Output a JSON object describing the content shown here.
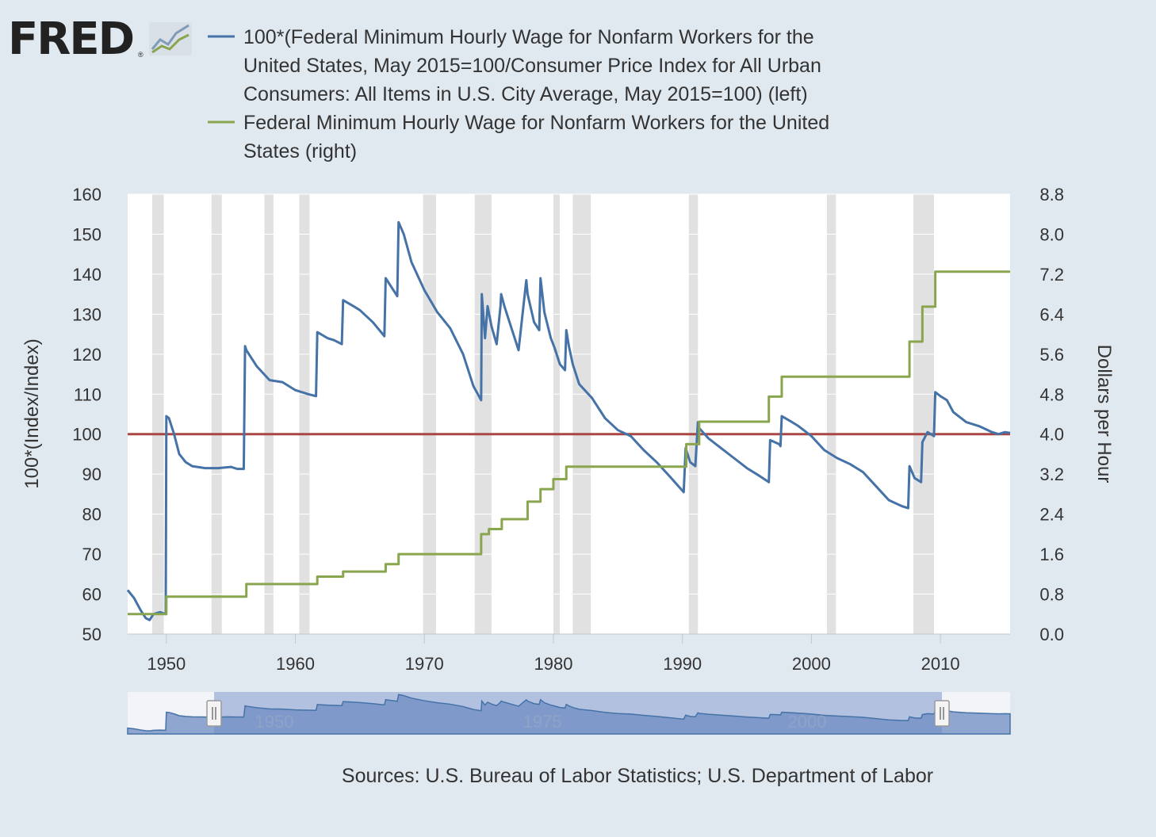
{
  "logo": {
    "text": "FRED",
    "registered": "®"
  },
  "legend": [
    {
      "name": "series-real-minimum-wage",
      "color": "#4572a7",
      "lines": [
        "100*(Federal Minimum Hourly Wage for Nonfarm Workers for the",
        "United States, May 2015=100/Consumer Price Index for All Urban",
        "Consumers: All Items in U.S. City Average, May 2015=100) (left)"
      ]
    },
    {
      "name": "series-nominal-minimum-wage",
      "color": "#89a54e",
      "lines": [
        "Federal Minimum Hourly Wage for Nonfarm Workers for the United",
        "States (right)"
      ]
    }
  ],
  "source_text": "Sources: U.S. Bureau of Labor Statistics; U.S. Department of Labor",
  "navigator": {
    "labels": [
      "1950",
      "1975",
      "2000"
    ]
  },
  "chart_data": {
    "type": "line",
    "title": "",
    "xlabel": "",
    "ylabel_left": "100*(Index/Index)",
    "ylabel_right": "Dollars per Hour",
    "xlim": [
      1947.0,
      2015.4
    ],
    "ylim_left": [
      50,
      160
    ],
    "ylim_right": [
      0,
      8.8
    ],
    "x_ticks": [
      "1950",
      "1960",
      "1970",
      "1980",
      "1990",
      "2000",
      "2010"
    ],
    "y_ticks_left": [
      "50",
      "60",
      "70",
      "80",
      "90",
      "100",
      "110",
      "120",
      "130",
      "140",
      "150",
      "160"
    ],
    "y_ticks_right": [
      "0.0",
      "0.8",
      "1.6",
      "2.4",
      "3.2",
      "4.0",
      "4.8",
      "5.6",
      "6.4",
      "7.2",
      "8.0",
      "8.8"
    ],
    "reference_line": {
      "value": 100,
      "axis": "left",
      "color": "#aa4643"
    },
    "recessions": [
      [
        1948.9,
        1949.8
      ],
      [
        1953.5,
        1954.3
      ],
      [
        1957.6,
        1958.3
      ],
      [
        1960.3,
        1961.1
      ],
      [
        1969.9,
        1970.9
      ],
      [
        1973.9,
        1975.2
      ],
      [
        1980.0,
        1980.5
      ],
      [
        1981.5,
        1982.9
      ],
      [
        1990.5,
        1991.2
      ],
      [
        2001.2,
        2001.9
      ],
      [
        2007.9,
        2009.5
      ]
    ],
    "series": [
      {
        "name": "100*(Federal Minimum Hourly Wage / CPI, May 2015=100) (left)",
        "axis": "left",
        "color": "#4572a7",
        "x": [
          1947.0,
          1947.5,
          1948.0,
          1948.4,
          1948.7,
          1949.0,
          1949.5,
          1949.95,
          1950.0,
          1950.2,
          1950.6,
          1951.0,
          1951.5,
          1952.0,
          1953.0,
          1954.0,
          1955.0,
          1955.5,
          1956.0,
          1956.1,
          1956.2,
          1957.0,
          1958.0,
          1959.0,
          1960.0,
          1961.0,
          1961.6,
          1961.7,
          1962.5,
          1963.0,
          1963.6,
          1963.7,
          1964.5,
          1965.0,
          1966.0,
          1966.9,
          1967.0,
          1967.5,
          1967.9,
          1968.0,
          1968.4,
          1969.0,
          1970.0,
          1971.0,
          1972.0,
          1973.0,
          1973.8,
          1974.4,
          1974.45,
          1974.7,
          1974.9,
          1975.2,
          1975.6,
          1975.9,
          1975.95,
          1976.2,
          1976.8,
          1977.3,
          1977.9,
          1978.0,
          1978.5,
          1978.9,
          1979.0,
          1979.3,
          1979.8,
          1980.1,
          1980.5,
          1980.9,
          1981.0,
          1981.2,
          1981.5,
          1982.0,
          1983.0,
          1984.0,
          1985.0,
          1986.0,
          1987.0,
          1988.0,
          1989.0,
          1990.1,
          1990.25,
          1990.6,
          1991.0,
          1991.2,
          1991.3,
          1992.0,
          1993.0,
          1994.0,
          1995.0,
          1996.0,
          1996.7,
          1996.8,
          1997.5,
          1997.6,
          1997.7,
          1998.5,
          1999.0,
          2000.0,
          2001.0,
          2002.0,
          2003.0,
          2004.0,
          2005.0,
          2006.0,
          2007.0,
          2007.5,
          2007.6,
          2008.0,
          2008.5,
          2008.6,
          2009.0,
          2009.5,
          2009.6,
          2010.0,
          2010.5,
          2011.0,
          2012.0,
          2013.0,
          2014.0,
          2014.5,
          2015.0,
          2015.4
        ],
        "values": [
          61,
          59,
          56,
          54,
          53.5,
          55,
          55.5,
          55,
          104.5,
          104,
          100,
          95,
          93,
          92,
          91.5,
          91.5,
          91.8,
          91.3,
          91.3,
          122,
          121,
          117,
          113.5,
          113,
          111,
          110,
          109.5,
          125.5,
          124,
          123.5,
          122.5,
          133.5,
          132,
          131,
          128,
          124.5,
          139,
          136.5,
          134.5,
          153,
          150,
          143,
          136,
          130.5,
          126.5,
          120,
          112,
          108.5,
          135,
          124,
          132,
          127,
          122.5,
          132,
          135,
          132,
          126,
          121,
          138.5,
          135,
          128,
          126,
          139,
          130.5,
          124,
          121.5,
          117.5,
          116,
          126,
          122,
          117.5,
          112.5,
          109,
          104,
          101,
          99.5,
          96,
          93,
          89.5,
          85.5,
          96.5,
          93,
          92,
          103,
          101.5,
          99,
          96.5,
          94,
          91.5,
          89.5,
          88,
          98.5,
          97.5,
          97,
          104.5,
          103,
          102,
          99.5,
          96,
          94,
          92.5,
          90.5,
          87,
          83.5,
          82,
          81.5,
          92,
          89,
          88,
          98,
          100.5,
          99.5,
          110.5,
          109.5,
          108.5,
          105.5,
          103,
          102,
          100.5,
          100,
          100.5,
          100.3
        ]
      },
      {
        "name": "Federal Minimum Hourly Wage for Nonfarm Workers (right)",
        "axis": "right",
        "color": "#89a54e",
        "step": true,
        "x": [
          1947.0,
          1950.0,
          1956.2,
          1961.7,
          1963.7,
          1967.0,
          1968.0,
          1974.4,
          1975.0,
          1976.0,
          1978.0,
          1979.0,
          1980.0,
          1981.0,
          1990.3,
          1991.3,
          1996.7,
          1997.7,
          2007.6,
          2008.6,
          2009.6,
          2015.4
        ],
        "values": [
          0.4,
          0.75,
          1.0,
          1.15,
          1.25,
          1.4,
          1.6,
          2.0,
          2.1,
          2.3,
          2.65,
          2.9,
          3.1,
          3.35,
          3.8,
          4.25,
          4.75,
          5.15,
          5.85,
          6.55,
          7.25,
          7.25
        ]
      }
    ]
  }
}
